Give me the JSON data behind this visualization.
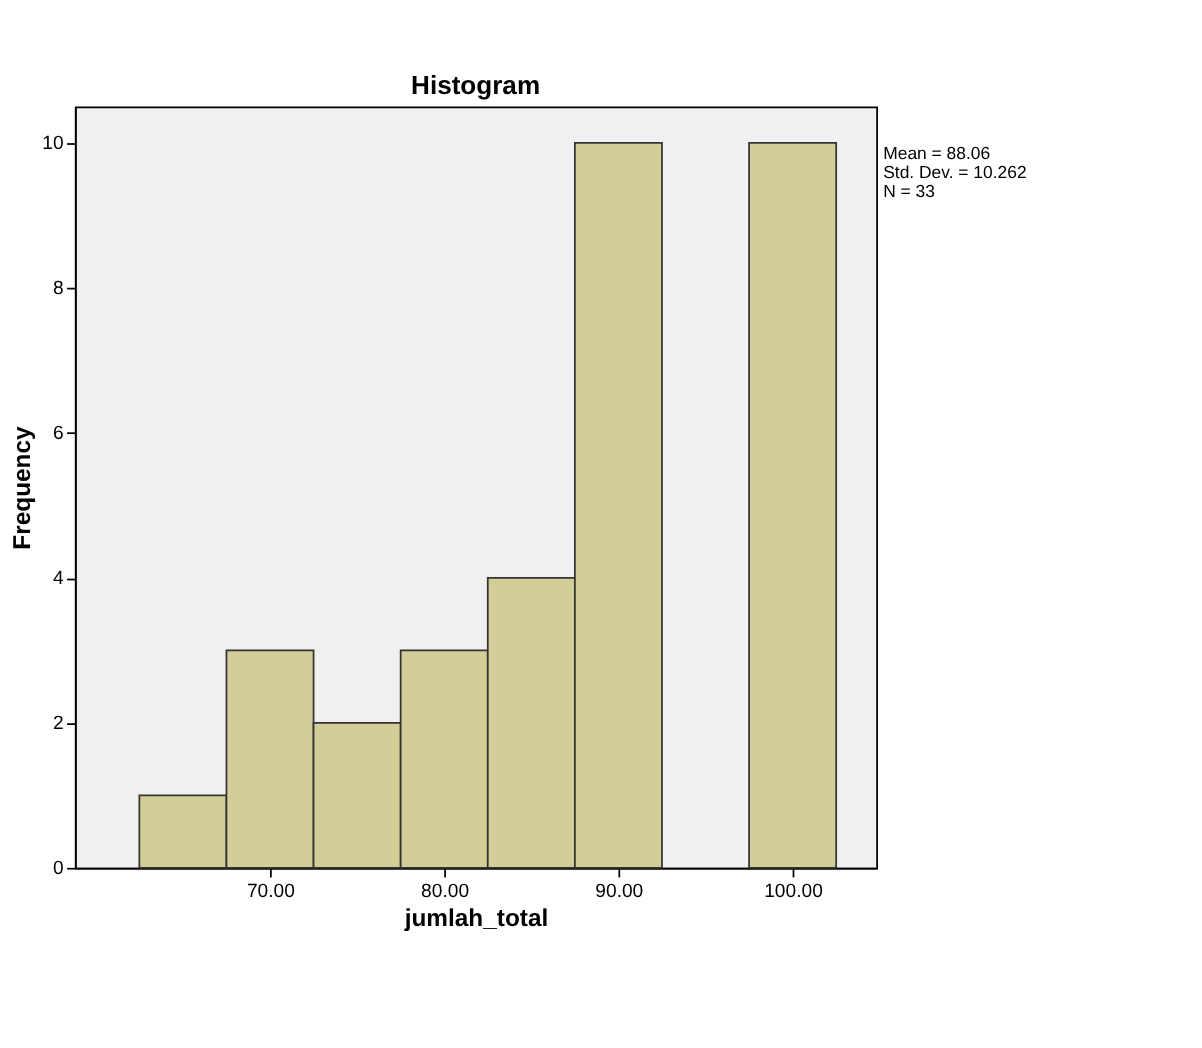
{
  "chart_data": {
    "type": "histogram",
    "title": "Histogram",
    "xlabel": "jumlah_total",
    "ylabel": "Frequency",
    "bins": [
      62.5,
      67.5,
      72.5,
      77.5,
      82.5,
      87.5,
      92.5,
      97.5,
      102.5
    ],
    "values": [
      1,
      3,
      2,
      3,
      4,
      10,
      0,
      10
    ],
    "color": "#d3ce97",
    "xlim": [
      58.8,
      104.8
    ],
    "xticks": [
      {
        "value": 70,
        "label": "70.00"
      },
      {
        "value": 80,
        "label": "80.00"
      },
      {
        "value": 90,
        "label": "90.00"
      },
      {
        "value": 100,
        "label": "100.00"
      }
    ],
    "ylim": [
      0,
      10.5
    ],
    "yticks": [
      0,
      2,
      4,
      6,
      8,
      10
    ],
    "grid": false,
    "annotations": [
      "Mean = 88.06",
      "Std. Dev. = 10.262",
      "N = 33"
    ]
  }
}
